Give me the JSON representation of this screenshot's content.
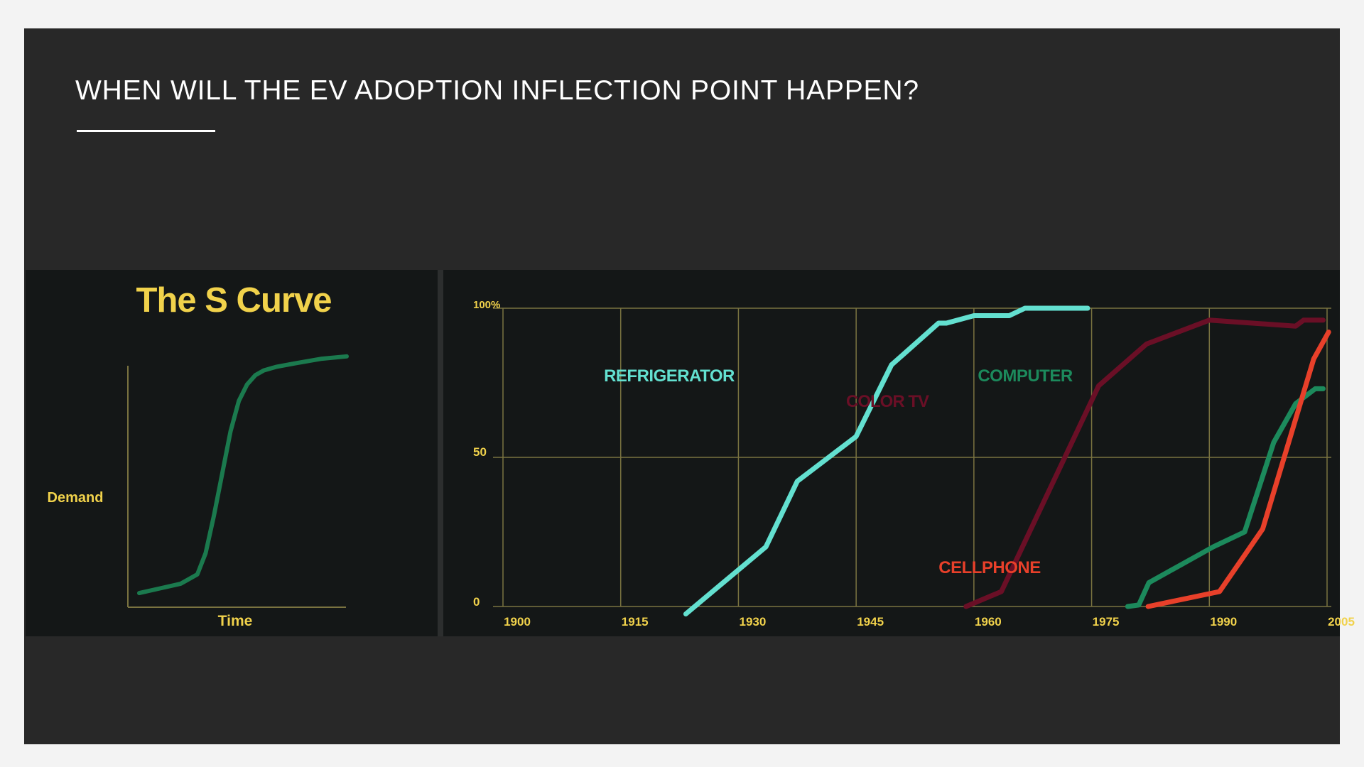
{
  "slide": {
    "title": "WHEN WILL THE EV ADOPTION INFLECTION POINT HAPPEN?"
  },
  "colors": {
    "page_bg": "#f3f3f3",
    "slide_bg": "#282828",
    "panel_bg": "#141717",
    "gridline": "#7a7340",
    "label_yellow": "#f1d24b",
    "scurve_green": "#1b7a4e"
  },
  "chart_data": [
    {
      "type": "line",
      "title": "The S Curve",
      "xlabel": "Time",
      "ylabel": "Demand",
      "grid": false,
      "xlim": [
        0,
        100
      ],
      "ylim": [
        0,
        100
      ],
      "series": [
        {
          "color": "#1b7a4e",
          "x": [
            0,
            10,
            20,
            28,
            32,
            36,
            40,
            44,
            48,
            52,
            56,
            60,
            66,
            75,
            88,
            100
          ],
          "y": [
            3,
            5,
            7,
            11,
            20,
            36,
            54,
            72,
            85,
            92,
            96,
            98,
            99.5,
            101,
            103,
            104
          ]
        }
      ]
    },
    {
      "type": "line",
      "title": "",
      "xlabel": "",
      "ylabel": "",
      "grid": true,
      "xlim": [
        1900,
        2005
      ],
      "ylim": [
        0,
        100
      ],
      "x_ticks": [
        "1900",
        "1915",
        "1930",
        "1945",
        "1960",
        "1975",
        "1990",
        "2005"
      ],
      "y_ticks": [
        "0",
        "50",
        "100%"
      ],
      "series": [
        {
          "name": "REFRIGERATOR",
          "color": "#63e0d0",
          "points": [
            [
              1923.3,
              -2.5
            ],
            [
              1933.5,
              20
            ],
            [
              1937.5,
              42
            ],
            [
              1945,
              57
            ],
            [
              1949.5,
              81
            ],
            [
              1955.5,
              95
            ],
            [
              1956.5,
              95
            ],
            [
              1960,
              97.5
            ],
            [
              1964.5,
              97.5
            ],
            [
              1966.5,
              100
            ],
            [
              1974.5,
              100
            ]
          ]
        },
        {
          "name": "COLOR TV",
          "color": "#6a0f26",
          "points": [
            [
              1959,
              0
            ],
            [
              1963.5,
              5
            ],
            [
              1975.9,
              74
            ],
            [
              1982,
              88
            ],
            [
              1990,
              96
            ],
            [
              2001,
              94
            ],
            [
              2002,
              96
            ],
            [
              2004.5,
              96
            ]
          ]
        },
        {
          "name": "COMPUTER",
          "color": "#1c8a5c",
          "points": [
            [
              1979.6,
              0
            ],
            [
              1981,
              0.5
            ],
            [
              1982.3,
              8
            ],
            [
              1990.5,
              20
            ],
            [
              1994.5,
              25
            ],
            [
              1998.2,
              55
            ],
            [
              2001,
              68
            ],
            [
              2003.5,
              73
            ],
            [
              2004.5,
              73
            ]
          ]
        },
        {
          "name": "CELLPHONE",
          "color": "#e8402a",
          "points": [
            [
              1982.2,
              0
            ],
            [
              1991.3,
              5
            ],
            [
              1996.8,
              26
            ],
            [
              2003.3,
              83
            ],
            [
              2005.2,
              92
            ]
          ]
        }
      ]
    }
  ]
}
